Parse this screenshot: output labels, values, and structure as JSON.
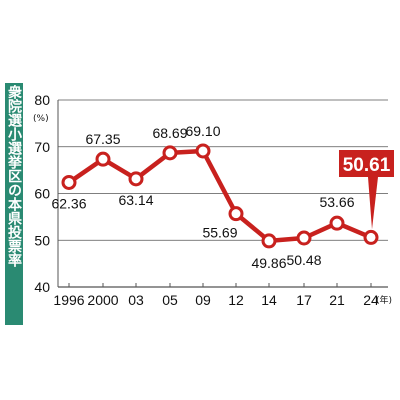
{
  "side_title": "衆院選小選挙区の本県投票率",
  "y_unit": "(%)",
  "x_unit": "(年)",
  "colors": {
    "line": "#c8211e",
    "marker_fill": "#ffffff",
    "highlight": "#c8211e",
    "side_title_bg": "#2a8a72",
    "grid": "#555555"
  },
  "chart_data": {
    "type": "line",
    "title": "衆院選小選挙区の本県投票率",
    "ylabel": "(%)",
    "xlabel": "(年)",
    "ylim": [
      40,
      80
    ],
    "yticks": [
      40,
      50,
      60,
      70,
      80
    ],
    "grid": true,
    "categories": [
      "1996",
      "2000",
      "03",
      "05",
      "09",
      "12",
      "14",
      "17",
      "21",
      "24"
    ],
    "series": [
      {
        "values": [
          62.36,
          67.35,
          63.14,
          68.69,
          69.1,
          55.69,
          49.86,
          50.48,
          53.66,
          50.61
        ]
      }
    ],
    "data_labels": [
      "62.36",
      "67.35",
      "63.14",
      "68.69",
      "69.10",
      "55.69",
      "49.86",
      "50.48",
      "53.66",
      "50.61"
    ],
    "highlight_index": 9
  }
}
